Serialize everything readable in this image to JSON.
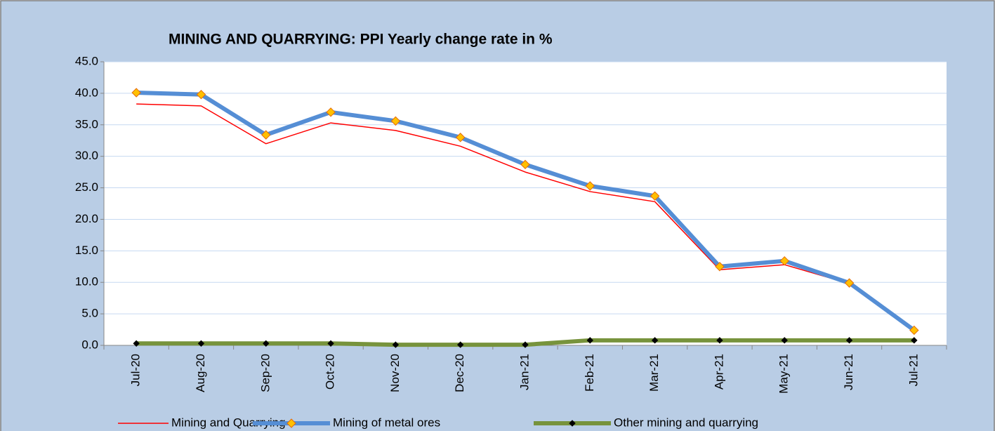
{
  "chart_data": {
    "type": "line",
    "title": "MINING AND QUARRYING:  PPI  Yearly change rate  in %",
    "categories": [
      "Jul-20",
      "Aug-20",
      "Sep-20",
      "Oct-20",
      "Nov-20",
      "Dec-20",
      "Jan-21",
      "Feb-21",
      "Mar-21",
      "Apr-21",
      "May-21",
      "Jun-21",
      "Jul-21"
    ],
    "series": [
      {
        "name": "Mining and Quarrying",
        "color": "#ff0000",
        "values": [
          38.3,
          38.0,
          32.0,
          35.3,
          34.1,
          31.6,
          27.5,
          24.4,
          22.8,
          12.0,
          12.8,
          9.8,
          2.3
        ]
      },
      {
        "name": "Mining of metal ores",
        "color": "#558ed5",
        "values": [
          40.1,
          39.8,
          33.4,
          37.0,
          35.6,
          33.0,
          28.7,
          25.3,
          23.7,
          12.5,
          13.4,
          9.9,
          2.4
        ]
      },
      {
        "name": "Other mining and quarrying",
        "color": "#77933c",
        "values": [
          0.3,
          0.3,
          0.3,
          0.3,
          0.1,
          0.1,
          0.1,
          0.8,
          0.8,
          0.8,
          0.8,
          0.8,
          0.8
        ]
      }
    ],
    "ylim": [
      0,
      45
    ],
    "yticks": [
      {
        "value": 0,
        "label": "0.0"
      },
      {
        "value": 5,
        "label": "5.0"
      },
      {
        "value": 10,
        "label": "10.0"
      },
      {
        "value": 15,
        "label": "15.0"
      },
      {
        "value": 20,
        "label": "20.0"
      },
      {
        "value": 25,
        "label": "25.0"
      },
      {
        "value": 30,
        "label": "30.0"
      },
      {
        "value": 35,
        "label": "35.0"
      },
      {
        "value": 40,
        "label": "40.0"
      },
      {
        "value": 45,
        "label": "45.0"
      }
    ],
    "grid": true,
    "legend": "bottom"
  }
}
